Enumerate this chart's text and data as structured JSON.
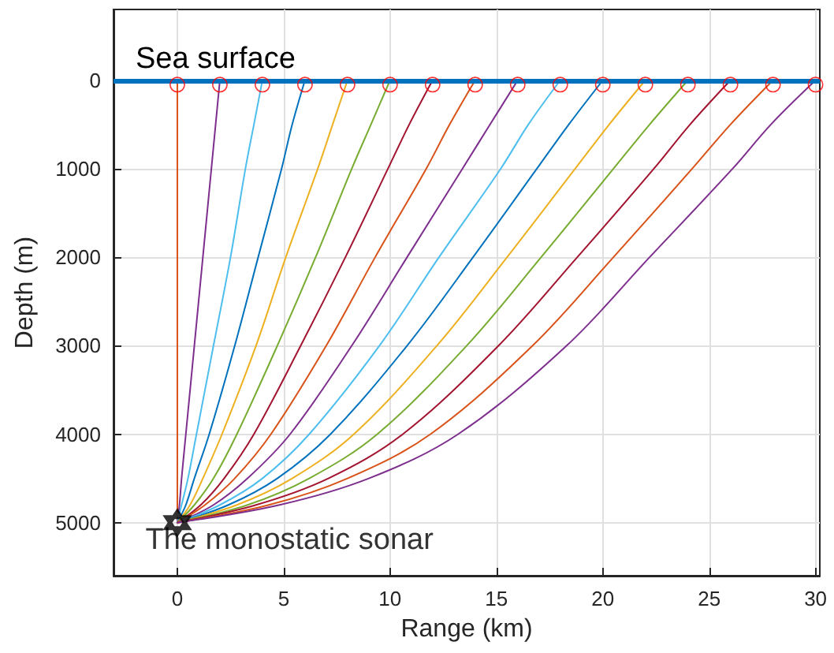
{
  "chart_data": {
    "type": "line",
    "xlabel": "Range (km)",
    "ylabel": "Depth (m)",
    "xlim": [
      -3,
      30.2
    ],
    "xticks": [
      0,
      5,
      10,
      15,
      20,
      25,
      30
    ],
    "ylim": [
      5600,
      -800
    ],
    "yticks": [
      0,
      1000,
      2000,
      3000,
      4000,
      5000
    ],
    "grid": true,
    "marker": "none",
    "line_style": "solid",
    "ref_lines": [
      {
        "axis": "y",
        "value": 0,
        "label": "Sea surface",
        "color": "#0072bd"
      }
    ],
    "series": [
      {
        "color": "#d95319",
        "x": [
          0,
          0
        ],
        "values": [
          5000,
          0
        ]
      },
      {
        "color": "#7e2f8e",
        "x": [
          0,
          0.1,
          0.2,
          0.4,
          0.8,
          1.2,
          1.6,
          1.8,
          2
        ],
        "values": [
          5000,
          4800,
          4500,
          4000,
          3000,
          2000,
          1000,
          500,
          0
        ]
      },
      {
        "color": "#4dbeee",
        "x": [
          0,
          0.2,
          0.5,
          0.9,
          1.7,
          2.5,
          3.2,
          3.6,
          4
        ],
        "values": [
          5000,
          4800,
          4500,
          4000,
          3000,
          2000,
          1000,
          500,
          0
        ]
      },
      {
        "color": "#0072bd",
        "x": [
          0,
          0.4,
          0.8,
          1.5,
          2.7,
          3.8,
          4.9,
          5.4,
          6
        ],
        "values": [
          5000,
          4800,
          4500,
          4000,
          3000,
          2000,
          1000,
          500,
          0
        ]
      },
      {
        "color": "#edb120",
        "x": [
          0,
          0.6,
          1.2,
          2.1,
          3.7,
          5.1,
          6.6,
          7.3,
          8
        ],
        "values": [
          5000,
          4800,
          4500,
          4000,
          3000,
          2000,
          1000,
          500,
          0
        ]
      },
      {
        "color": "#77ac30",
        "x": [
          0,
          0.8,
          1.7,
          2.8,
          4.7,
          6.5,
          8.2,
          9.1,
          10
        ],
        "values": [
          5000,
          4800,
          4500,
          4000,
          3000,
          2000,
          1000,
          500,
          0
        ]
      },
      {
        "color": "#a2142f",
        "x": [
          0,
          1.1,
          2.2,
          3.6,
          5.8,
          7.9,
          9.9,
          10.9,
          12
        ],
        "values": [
          5000,
          4800,
          4500,
          4000,
          3000,
          2000,
          1000,
          500,
          0
        ]
      },
      {
        "color": "#d95319",
        "x": [
          0,
          1.3,
          2.7,
          4.4,
          7.0,
          9.3,
          11.7,
          12.8,
          14
        ],
        "values": [
          5000,
          4800,
          4500,
          4000,
          3000,
          2000,
          1000,
          500,
          0
        ]
      },
      {
        "color": "#7e2f8e",
        "x": [
          0,
          1.7,
          3.3,
          5.3,
          8.2,
          10.8,
          13.4,
          14.7,
          16
        ],
        "values": [
          5000,
          4800,
          4500,
          4000,
          3000,
          2000,
          1000,
          500,
          0
        ]
      },
      {
        "color": "#4dbeee",
        "x": [
          0,
          2.0,
          4.0,
          6.2,
          9.5,
          12.3,
          15.2,
          16.5,
          18
        ],
        "values": [
          5000,
          4800,
          4500,
          4000,
          3000,
          2000,
          1000,
          500,
          0
        ]
      },
      {
        "color": "#0072bd",
        "x": [
          0,
          2.4,
          4.7,
          7.2,
          10.8,
          13.9,
          16.9,
          18.4,
          20
        ],
        "values": [
          5000,
          4800,
          4500,
          4000,
          3000,
          2000,
          1000,
          500,
          0
        ]
      },
      {
        "color": "#edb120",
        "x": [
          0,
          2.8,
          5.4,
          8.3,
          12.2,
          15.5,
          18.7,
          20.3,
          22
        ],
        "values": [
          5000,
          4800,
          4500,
          4000,
          3000,
          2000,
          1000,
          500,
          0
        ]
      },
      {
        "color": "#77ac30",
        "x": [
          0,
          3.3,
          6.2,
          9.4,
          13.6,
          17.1,
          20.5,
          22.2,
          24
        ],
        "values": [
          5000,
          4800,
          4500,
          4000,
          3000,
          2000,
          1000,
          500,
          0
        ]
      },
      {
        "color": "#a2142f",
        "x": [
          0,
          3.7,
          7.1,
          10.6,
          15.1,
          18.8,
          22.4,
          24.1,
          26
        ],
        "values": [
          5000,
          4800,
          4500,
          4000,
          3000,
          2000,
          1000,
          500,
          0
        ]
      },
      {
        "color": "#d95319",
        "x": [
          0,
          4.3,
          8.0,
          11.9,
          16.7,
          20.5,
          24.2,
          26.0,
          28
        ],
        "values": [
          5000,
          4800,
          4500,
          4000,
          3000,
          2000,
          1000,
          500,
          0
        ]
      },
      {
        "color": "#7e2f8e",
        "x": [
          0,
          4.8,
          9.0,
          13.2,
          18.3,
          22.2,
          26.1,
          27.9,
          30
        ],
        "values": [
          5000,
          4800,
          4500,
          4000,
          3000,
          2000,
          1000,
          500,
          0
        ]
      },
      {
        "type": "scatter",
        "marker": "circle",
        "color": "#ff0000",
        "x": [
          0,
          2,
          4,
          6,
          8,
          10,
          12,
          14,
          16,
          18,
          20,
          22,
          24,
          26,
          28,
          30
        ],
        "values": [
          50,
          50,
          50,
          50,
          50,
          50,
          50,
          50,
          50,
          50,
          50,
          50,
          50,
          50,
          50,
          50
        ]
      },
      {
        "type": "scatter",
        "marker": "star",
        "name": "The monostatic sonar",
        "color": "#000000",
        "x": [
          0
        ],
        "values": [
          5000
        ]
      }
    ]
  }
}
